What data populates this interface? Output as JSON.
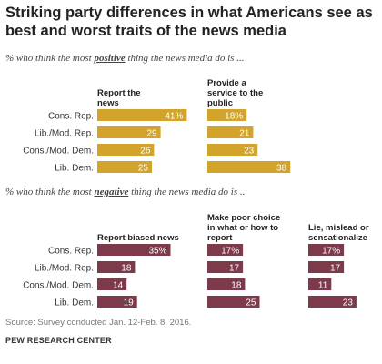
{
  "title": "Striking party differences in what Americans see as best and worst traits of the news media",
  "positive_subtitle": {
    "prefix": "% who think the most ",
    "keyword": "positive",
    "suffix": " thing the news media do is ..."
  },
  "negative_subtitle": {
    "prefix": "% who think the most ",
    "keyword": "negative",
    "suffix": " thing the news media do is ..."
  },
  "source": "Source: Survey conducted Jan. 12-Feb. 8, 2016.",
  "brand": "PEW RESEARCH CENTER",
  "colors": {
    "positive_bar": "#d3a42b",
    "negative_bar": "#7d3a4a",
    "label_on_bar": "#ffffff"
  },
  "chart_data": [
    {
      "type": "bar",
      "orientation": "horizontal",
      "title": "% who think the most positive thing the news media do is ...",
      "categories": [
        "Cons. Rep.",
        "Lib./Mod. Rep.",
        "Cons./Mod. Dem.",
        "Lib. Dem."
      ],
      "series": [
        {
          "name": "Report the news",
          "values": [
            41,
            29,
            26,
            25
          ],
          "labels": [
            "41%",
            "29",
            "26",
            "25"
          ]
        },
        {
          "name": "Provide a service to the public",
          "values": [
            18,
            21,
            23,
            38
          ],
          "labels": [
            "18%",
            "21",
            "23",
            "38"
          ]
        }
      ]
    },
    {
      "type": "bar",
      "orientation": "horizontal",
      "title": "% who think the most negative thing the news media do is ...",
      "categories": [
        "Cons. Rep.",
        "Lib./Mod. Rep.",
        "Cons./Mod. Dem.",
        "Lib. Dem."
      ],
      "series": [
        {
          "name": "Report biased news",
          "values": [
            35,
            18,
            14,
            19
          ],
          "labels": [
            "35%",
            "18",
            "14",
            "19"
          ]
        },
        {
          "name": "Make poor choice in what or how to report",
          "values": [
            17,
            17,
            18,
            25
          ],
          "labels": [
            "17%",
            "17",
            "18",
            "25"
          ]
        },
        {
          "name": "Lie, mislead or sensationalize",
          "values": [
            17,
            17,
            11,
            23
          ],
          "labels": [
            "17%",
            "17",
            "11",
            "23"
          ]
        }
      ]
    }
  ]
}
